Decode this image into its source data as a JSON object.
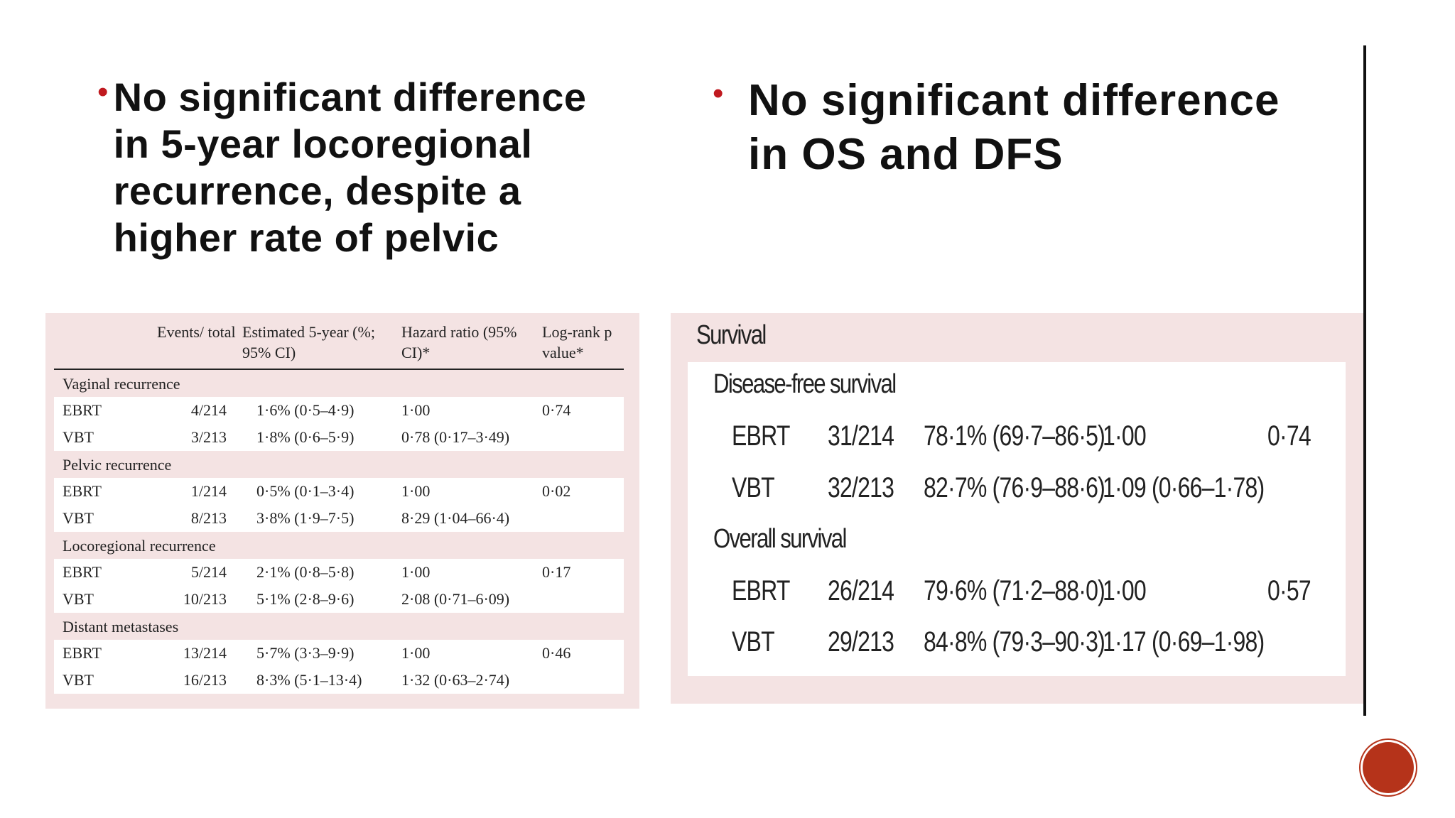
{
  "left_bullet": {
    "text": "No significant difference in 5-year locoregional recurrence, despite a higher rate of pelvic"
  },
  "right_bullet": {
    "text": "No significant difference in OS and DFS"
  },
  "left_table": {
    "headers": [
      "",
      "Events/ total",
      "Estimated 5-year (%; 95% CI)",
      "Hazard ratio (95% CI)*",
      "Log-rank p value*"
    ],
    "sections": [
      {
        "title": "Vaginal recurrence",
        "rows": [
          [
            "EBRT",
            "4/214",
            "1·6% (0·5–4·9)",
            "1·00",
            "0·74"
          ],
          [
            "VBT",
            "3/213",
            "1·8% (0·6–5·9)",
            "0·78 (0·17–3·49)",
            ""
          ]
        ]
      },
      {
        "title": "Pelvic recurrence",
        "rows": [
          [
            "EBRT",
            "1/214",
            "0·5% (0·1–3·4)",
            "1·00",
            "0·02"
          ],
          [
            "VBT",
            "8/213",
            "3·8% (1·9–7·5)",
            "8·29 (1·04–66·4)",
            ""
          ]
        ]
      },
      {
        "title": "Locoregional recurrence",
        "rows": [
          [
            "EBRT",
            "5/214",
            "2·1% (0·8–5·8)",
            "1·00",
            "0·17"
          ],
          [
            "VBT",
            "10/213",
            "5·1% (2·8–9·6)",
            "2·08 (0·71–6·09)",
            ""
          ]
        ]
      },
      {
        "title": "Distant metastases",
        "rows": [
          [
            "EBRT",
            "13/214",
            "5·7% (3·3–9·9)",
            "1·00",
            "0·46"
          ],
          [
            "VBT",
            "16/213",
            "8·3% (5·1–13·4)",
            "1·32 (0·63–2·74)",
            ""
          ]
        ]
      }
    ]
  },
  "right_table": {
    "title": "Survival",
    "sections": [
      {
        "title": "Disease-free survival",
        "rows": [
          [
            "EBRT",
            "31/214",
            "78·1% (69·7–86·5)",
            "1·00",
            "0·74"
          ],
          [
            "VBT",
            "32/213",
            "82·7% (76·9–88·6)",
            "1·09 (0·66–1·78)",
            ""
          ]
        ]
      },
      {
        "title": "Overall survival",
        "rows": [
          [
            "EBRT",
            "26/214",
            "79·6% (71·2–88·0)",
            "1·00",
            "0·57"
          ],
          [
            "VBT",
            "29/213",
            "84·8% (79·3–90·3)",
            "1·17 (0·69–1·98)",
            ""
          ]
        ]
      }
    ]
  },
  "colors": {
    "bullet": "#c0191f",
    "panel_bg": "#f4e3e3",
    "nav_button": "#b5331a"
  }
}
